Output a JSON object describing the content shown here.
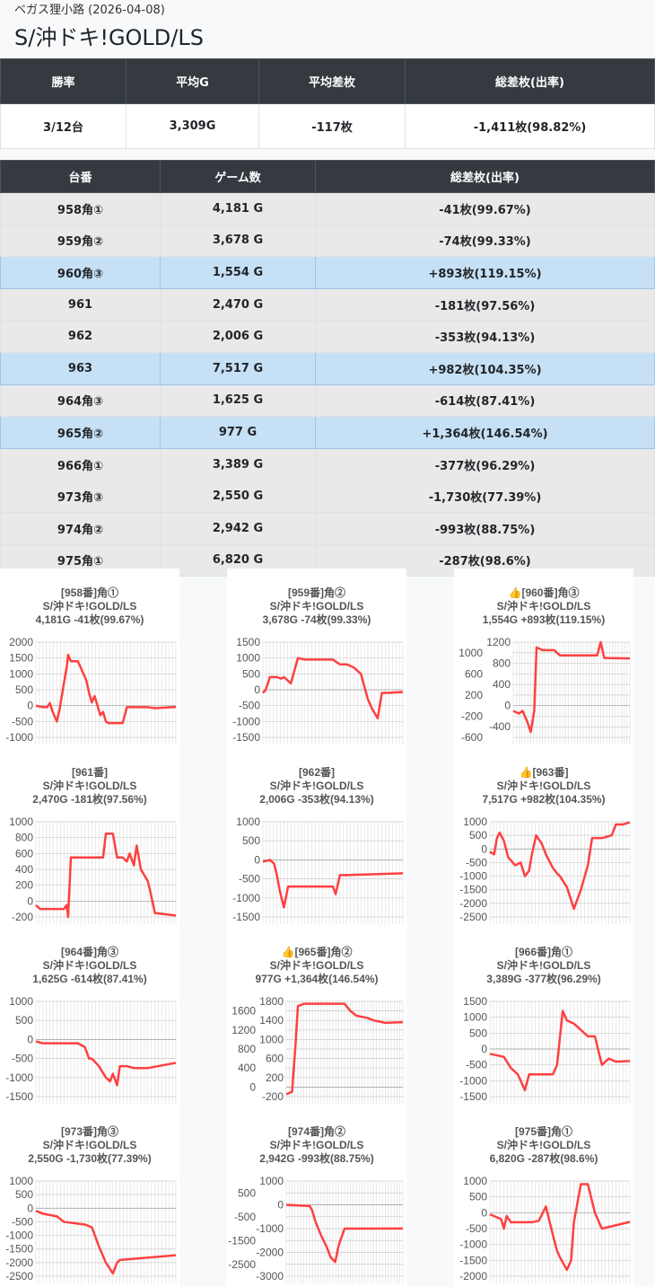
{
  "header": {
    "subtitle": "ベガス狸小路 (2026-04-08)",
    "title": "S/沖ドキ!GOLD/LS"
  },
  "summary": {
    "headers": [
      "勝率",
      "平均G",
      "平均差枚",
      "総差枚(出率)"
    ],
    "values": [
      "3/12台",
      "3,309G",
      "-117枚",
      "-1,411枚(98.82%)"
    ]
  },
  "units": {
    "headers": [
      "台番",
      "ゲーム数",
      "総差枚(出率)"
    ],
    "rows": [
      {
        "no": "958角①",
        "games": "4,181 G",
        "diff": "-41枚(99.67%)",
        "hl": false
      },
      {
        "no": "959角②",
        "games": "3,678 G",
        "diff": "-74枚(99.33%)",
        "hl": false
      },
      {
        "no": "960角③",
        "games": "1,554 G",
        "diff": "+893枚(119.15%)",
        "hl": true
      },
      {
        "no": "961",
        "games": "2,470 G",
        "diff": "-181枚(97.56%)",
        "hl": false
      },
      {
        "no": "962",
        "games": "2,006 G",
        "diff": "-353枚(94.13%)",
        "hl": false
      },
      {
        "no": "963",
        "games": "7,517 G",
        "diff": "+982枚(104.35%)",
        "hl": true
      },
      {
        "no": "964角③",
        "games": "1,625 G",
        "diff": "-614枚(87.41%)",
        "hl": false
      },
      {
        "no": "965角②",
        "games": "977 G",
        "diff": "+1,364枚(146.54%)",
        "hl": true
      },
      {
        "no": "966角①",
        "games": "3,389 G",
        "diff": "-377枚(96.29%)",
        "hl": false
      },
      {
        "no": "973角③",
        "games": "2,550 G",
        "diff": "-1,730枚(77.39%)",
        "hl": false
      },
      {
        "no": "974角②",
        "games": "2,942 G",
        "diff": "-993枚(88.75%)",
        "hl": false
      },
      {
        "no": "975角①",
        "games": "6,820 G",
        "diff": "-287枚(98.6%)",
        "hl": false
      }
    ]
  },
  "line_color": "#ff4040",
  "chart_data": [
    {
      "type": "line",
      "title": [
        "[958番]角①",
        "S/沖ドキ!GOLD/LS",
        "4,181G -41枚(99.67%)"
      ],
      "ylim": [
        -1000,
        2000
      ],
      "ystep": 500,
      "points": [
        [
          0,
          0
        ],
        [
          0.05,
          -50
        ],
        [
          0.08,
          -50
        ],
        [
          0.1,
          80
        ],
        [
          0.12,
          -200
        ],
        [
          0.15,
          -500
        ],
        [
          0.17,
          -100
        ],
        [
          0.2,
          700
        ],
        [
          0.22,
          1200
        ],
        [
          0.23,
          1600
        ],
        [
          0.25,
          1400
        ],
        [
          0.3,
          1400
        ],
        [
          0.33,
          1100
        ],
        [
          0.36,
          800
        ],
        [
          0.38,
          400
        ],
        [
          0.4,
          100
        ],
        [
          0.42,
          300
        ],
        [
          0.46,
          -300
        ],
        [
          0.48,
          -200
        ],
        [
          0.5,
          -500
        ],
        [
          0.52,
          -550
        ],
        [
          0.62,
          -550
        ],
        [
          0.65,
          -50
        ],
        [
          0.8,
          -50
        ],
        [
          0.85,
          -80
        ],
        [
          1,
          -41
        ]
      ]
    },
    {
      "type": "line",
      "title": [
        "[959番]角②",
        "S/沖ドキ!GOLD/LS",
        "3,678G -74枚(99.33%)"
      ],
      "ylim": [
        -1500,
        1500
      ],
      "ystep": 500,
      "points": [
        [
          0,
          -100
        ],
        [
          0.02,
          0
        ],
        [
          0.05,
          400
        ],
        [
          0.1,
          400
        ],
        [
          0.13,
          350
        ],
        [
          0.15,
          400
        ],
        [
          0.2,
          200
        ],
        [
          0.25,
          1000
        ],
        [
          0.3,
          950
        ],
        [
          0.5,
          950
        ],
        [
          0.55,
          800
        ],
        [
          0.6,
          800
        ],
        [
          0.65,
          700
        ],
        [
          0.7,
          500
        ],
        [
          0.75,
          -300
        ],
        [
          0.78,
          -600
        ],
        [
          0.82,
          -900
        ],
        [
          0.85,
          -100
        ],
        [
          0.9,
          -100
        ],
        [
          0.95,
          -80
        ],
        [
          1,
          -74
        ]
      ]
    },
    {
      "type": "line",
      "title": [
        "👍[960番]角③",
        "S/沖ドキ!GOLD/LS",
        "1,554G +893枚(119.15%)"
      ],
      "ylim": [
        -600,
        1200
      ],
      "ystep": 200,
      "points": [
        [
          0,
          -100
        ],
        [
          0.05,
          -150
        ],
        [
          0.08,
          -100
        ],
        [
          0.12,
          -300
        ],
        [
          0.15,
          -500
        ],
        [
          0.18,
          -100
        ],
        [
          0.2,
          1100
        ],
        [
          0.25,
          1050
        ],
        [
          0.35,
          1050
        ],
        [
          0.4,
          950
        ],
        [
          0.72,
          950
        ],
        [
          0.75,
          1200
        ],
        [
          0.78,
          900
        ],
        [
          1,
          893
        ]
      ]
    },
    {
      "type": "line",
      "title": [
        "[961番]",
        "S/沖ドキ!GOLD/LS",
        "2,470G -181枚(97.56%)"
      ],
      "ylim": [
        -200,
        1000
      ],
      "ystep": 200,
      "points": [
        [
          0,
          -50
        ],
        [
          0.03,
          -100
        ],
        [
          0.2,
          -100
        ],
        [
          0.22,
          -50
        ],
        [
          0.23,
          -200
        ],
        [
          0.25,
          550
        ],
        [
          0.48,
          550
        ],
        [
          0.5,
          850
        ],
        [
          0.55,
          850
        ],
        [
          0.58,
          550
        ],
        [
          0.62,
          550
        ],
        [
          0.65,
          500
        ],
        [
          0.67,
          600
        ],
        [
          0.7,
          450
        ],
        [
          0.72,
          700
        ],
        [
          0.75,
          400
        ],
        [
          0.8,
          250
        ],
        [
          0.82,
          100
        ],
        [
          0.85,
          -150
        ],
        [
          1,
          -181
        ]
      ]
    },
    {
      "type": "line",
      "title": [
        "[962番]",
        "S/沖ドキ!GOLD/LS",
        "2,006G -353枚(94.13%)"
      ],
      "ylim": [
        -1500,
        1000
      ],
      "ystep": 500,
      "points": [
        [
          0,
          -50
        ],
        [
          0.05,
          0
        ],
        [
          0.08,
          -100
        ],
        [
          0.1,
          -400
        ],
        [
          0.12,
          -800
        ],
        [
          0.15,
          -1250
        ],
        [
          0.18,
          -700
        ],
        [
          0.5,
          -700
        ],
        [
          0.52,
          -900
        ],
        [
          0.55,
          -400
        ],
        [
          0.6,
          -400
        ],
        [
          1,
          -353
        ]
      ]
    },
    {
      "type": "line",
      "title": [
        "👍[963番]",
        "S/沖ドキ!GOLD/LS",
        "7,517G +982枚(104.35%)"
      ],
      "ylim": [
        -2500,
        1000
      ],
      "ystep": 500,
      "points": [
        [
          0,
          -100
        ],
        [
          0.03,
          -200
        ],
        [
          0.05,
          400
        ],
        [
          0.07,
          600
        ],
        [
          0.1,
          300
        ],
        [
          0.13,
          -300
        ],
        [
          0.18,
          -600
        ],
        [
          0.22,
          -500
        ],
        [
          0.25,
          -1000
        ],
        [
          0.28,
          -800
        ],
        [
          0.3,
          -200
        ],
        [
          0.33,
          500
        ],
        [
          0.37,
          200
        ],
        [
          0.4,
          -200
        ],
        [
          0.45,
          -700
        ],
        [
          0.48,
          -900
        ],
        [
          0.5,
          -1000
        ],
        [
          0.55,
          -1400
        ],
        [
          0.6,
          -2200
        ],
        [
          0.65,
          -1500
        ],
        [
          0.7,
          -600
        ],
        [
          0.73,
          400
        ],
        [
          0.8,
          400
        ],
        [
          0.87,
          500
        ],
        [
          0.9,
          900
        ],
        [
          0.95,
          900
        ],
        [
          1,
          982
        ]
      ]
    },
    {
      "type": "line",
      "title": [
        "[964番]角③",
        "S/沖ドキ!GOLD/LS",
        "1,625G -614枚(87.41%)"
      ],
      "ylim": [
        -1500,
        1000
      ],
      "ystep": 500,
      "points": [
        [
          0,
          -50
        ],
        [
          0.05,
          -100
        ],
        [
          0.3,
          -100
        ],
        [
          0.35,
          -200
        ],
        [
          0.38,
          -500
        ],
        [
          0.4,
          -500
        ],
        [
          0.45,
          -700
        ],
        [
          0.5,
          -1000
        ],
        [
          0.53,
          -1100
        ],
        [
          0.55,
          -900
        ],
        [
          0.58,
          -1200
        ],
        [
          0.6,
          -700
        ],
        [
          0.65,
          -700
        ],
        [
          0.7,
          -750
        ],
        [
          0.8,
          -750
        ],
        [
          1,
          -614
        ]
      ]
    },
    {
      "type": "line",
      "title": [
        "👍[965番]角②",
        "S/沖ドキ!GOLD/LS",
        "977G +1,364枚(146.54%)"
      ],
      "ylim": [
        -200,
        1800
      ],
      "ystep": 200,
      "points": [
        [
          0,
          -150
        ],
        [
          0.05,
          -100
        ],
        [
          0.08,
          900
        ],
        [
          0.1,
          1700
        ],
        [
          0.15,
          1750
        ],
        [
          0.5,
          1750
        ],
        [
          0.55,
          1600
        ],
        [
          0.6,
          1500
        ],
        [
          0.7,
          1450
        ],
        [
          0.75,
          1400
        ],
        [
          0.85,
          1350
        ],
        [
          1,
          1364
        ]
      ]
    },
    {
      "type": "line",
      "title": [
        "[966番]角①",
        "S/沖ドキ!GOLD/LS",
        "3,389G -377枚(96.29%)"
      ],
      "ylim": [
        -1500,
        1500
      ],
      "ystep": 500,
      "points": [
        [
          0,
          -150
        ],
        [
          0.05,
          -200
        ],
        [
          0.1,
          -250
        ],
        [
          0.15,
          -600
        ],
        [
          0.2,
          -800
        ],
        [
          0.25,
          -1300
        ],
        [
          0.28,
          -800
        ],
        [
          0.45,
          -800
        ],
        [
          0.48,
          -500
        ],
        [
          0.52,
          1200
        ],
        [
          0.55,
          900
        ],
        [
          0.6,
          800
        ],
        [
          0.65,
          600
        ],
        [
          0.7,
          400
        ],
        [
          0.75,
          400
        ],
        [
          0.8,
          -500
        ],
        [
          0.85,
          -300
        ],
        [
          0.9,
          -400
        ],
        [
          1,
          -377
        ]
      ]
    },
    {
      "type": "line",
      "title": [
        "[973番]角③",
        "S/沖ドキ!GOLD/LS",
        "2,550G -1,730枚(77.39%)"
      ],
      "ylim": [
        -2500,
        1000
      ],
      "ystep": 500,
      "points": [
        [
          0,
          -100
        ],
        [
          0.05,
          -200
        ],
        [
          0.15,
          -300
        ],
        [
          0.2,
          -500
        ],
        [
          0.35,
          -600
        ],
        [
          0.4,
          -700
        ],
        [
          0.45,
          -1400
        ],
        [
          0.5,
          -2000
        ],
        [
          0.55,
          -2400
        ],
        [
          0.58,
          -2000
        ],
        [
          0.6,
          -1900
        ],
        [
          1,
          -1730
        ]
      ]
    },
    {
      "type": "line",
      "title": [
        "[974番]角②",
        "S/沖ドキ!GOLD/LS",
        "2,942G -993枚(88.75%)"
      ],
      "ylim": [
        -3000,
        1000
      ],
      "ystep": 500,
      "points": [
        [
          0,
          0
        ],
        [
          0.2,
          -50
        ],
        [
          0.22,
          -200
        ],
        [
          0.25,
          -700
        ],
        [
          0.3,
          -1300
        ],
        [
          0.35,
          -1800
        ],
        [
          0.38,
          -2200
        ],
        [
          0.42,
          -2400
        ],
        [
          0.45,
          -1700
        ],
        [
          0.5,
          -1000
        ],
        [
          0.6,
          -1000
        ],
        [
          1,
          -993
        ]
      ]
    },
    {
      "type": "line",
      "title": [
        "[975番]角①",
        "S/沖ドキ!GOLD/LS",
        "6,820G -287枚(98.6%)"
      ],
      "ylim": [
        -2000,
        1000
      ],
      "ystep": 500,
      "points": [
        [
          0,
          -50
        ],
        [
          0.08,
          -200
        ],
        [
          0.1,
          -500
        ],
        [
          0.12,
          -100
        ],
        [
          0.15,
          -300
        ],
        [
          0.3,
          -300
        ],
        [
          0.35,
          -250
        ],
        [
          0.4,
          200
        ],
        [
          0.45,
          -700
        ],
        [
          0.48,
          -1200
        ],
        [
          0.5,
          -1400
        ],
        [
          0.55,
          -1800
        ],
        [
          0.58,
          -1500
        ],
        [
          0.6,
          -300
        ],
        [
          0.65,
          900
        ],
        [
          0.7,
          900
        ],
        [
          0.75,
          0
        ],
        [
          0.8,
          -500
        ],
        [
          1,
          -287
        ]
      ]
    }
  ]
}
